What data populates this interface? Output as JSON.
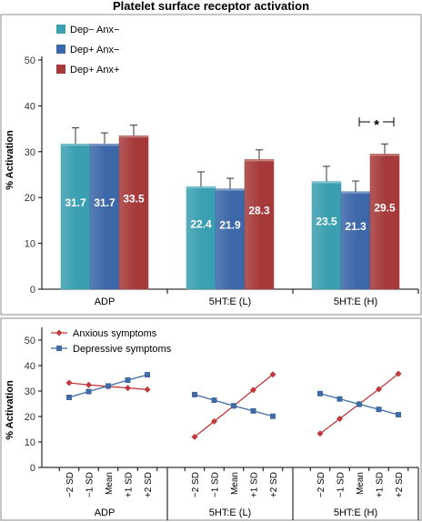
{
  "figure_title": "Platelet surface receptor activation",
  "colors": {
    "dep_minus_anx_minus": "#3a9fb0",
    "dep_plus_anx_minus": "#3c67a8",
    "dep_plus_anx_plus": "#a63a3a",
    "anxious": "#c0393b",
    "depressive": "#3e6aa6"
  },
  "chart_data": [
    {
      "type": "bar",
      "title": "Platelet surface receptor activation",
      "ylabel": "% Activation",
      "xlabel": "",
      "ylim": [
        0,
        50
      ],
      "yticks": [
        0,
        10,
        20,
        30,
        40,
        50
      ],
      "grid": false,
      "legend_position": "top-left",
      "categories": [
        "ADP",
        "5HT:E (L)",
        "5HT:E (H)"
      ],
      "series": [
        {
          "name": "Dep− Anx−",
          "values": [
            31.7,
            22.4,
            23.5
          ],
          "labels": [
            "31.7",
            "22.4",
            "23.5"
          ],
          "error": [
            3.5,
            3.2,
            3.3
          ]
        },
        {
          "name": "Dep+ Anx−",
          "values": [
            31.7,
            21.9,
            21.3
          ],
          "labels": [
            "31.7",
            "21.9",
            "21.3"
          ],
          "error": [
            2.4,
            2.3,
            2.3
          ]
        },
        {
          "name": "Dep+ Anx+",
          "values": [
            33.5,
            28.3,
            29.5
          ],
          "labels": [
            "33.5",
            "28.3",
            "29.5"
          ],
          "error": [
            2.3,
            2.1,
            2.2
          ]
        }
      ],
      "annotation": {
        "text": "*",
        "category": "5HT:E (H)",
        "y": 36.5
      }
    },
    {
      "type": "line",
      "ylabel": "% Activation",
      "xlabel": "",
      "ylim": [
        0,
        55
      ],
      "yticks": [
        0,
        10,
        20,
        30,
        40,
        50
      ],
      "grid": false,
      "legend_position": "top-left",
      "groups": [
        "ADP",
        "5HT:E (L)",
        "5HT:E (H)"
      ],
      "x": [
        "−2 SD",
        "−1 SD",
        "Mean",
        "+1 SD",
        "+2 SD"
      ],
      "series": [
        {
          "name": "Anxious symptoms",
          "marker": "diamond",
          "values": [
            [
              33.2,
              32.4,
              31.8,
              31.2,
              30.6
            ],
            [
              12.0,
              18.1,
              24.2,
              30.4,
              36.5
            ],
            [
              13.3,
              19.1,
              24.9,
              30.7,
              36.8
            ]
          ]
        },
        {
          "name": "Depressive symptoms",
          "marker": "square",
          "values": [
            [
              27.5,
              29.8,
              32.0,
              34.3,
              36.4
            ],
            [
              28.6,
              26.4,
              24.2,
              22.2,
              20.1
            ],
            [
              29.0,
              26.9,
              24.8,
              22.8,
              20.7
            ]
          ]
        }
      ]
    }
  ]
}
